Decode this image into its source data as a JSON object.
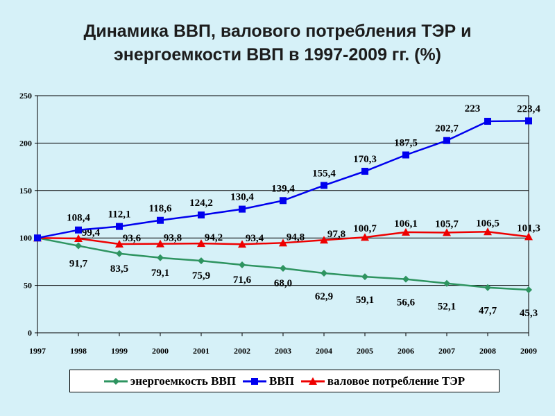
{
  "chart_data": {
    "type": "line",
    "title_lines": [
      "Динамика ВВП, валового потребления ТЭР и",
      "энергоемкости ВВП в 1997-2009 гг. (%)"
    ],
    "x": [
      "1997",
      "1998",
      "1999",
      "2000",
      "2001",
      "2002",
      "2003",
      "2004",
      "2005",
      "2006",
      "2007",
      "2008",
      "2009"
    ],
    "ylim": [
      0,
      250
    ],
    "yticks": [
      "0",
      "50",
      "100",
      "150",
      "200",
      "250"
    ],
    "grid": true,
    "legend_position": "bottom",
    "series": [
      {
        "name": "энергоемкость ВВП",
        "color": "#2e9460",
        "marker": "diamond",
        "values": [
          100,
          91.7,
          83.5,
          79.1,
          75.9,
          71.6,
          68.0,
          62.9,
          59.1,
          56.6,
          52.1,
          47.7,
          45.3
        ],
        "labels": [
          "",
          "91,7",
          "83,5",
          "79,1",
          "75,9",
          "71,6",
          "68,0",
          "62,9",
          "59,1",
          "56,6",
          "52,1",
          "47,7",
          "45,3"
        ]
      },
      {
        "name": "ВВП",
        "color": "#0000ee",
        "marker": "square",
        "values": [
          100,
          108.4,
          112.1,
          118.6,
          124.2,
          130.4,
          139.4,
          155.4,
          170.3,
          187.5,
          202.7,
          223,
          223.4
        ],
        "labels": [
          "",
          "108,4",
          "112,1",
          "118,6",
          "124,2",
          "130,4",
          "139,4",
          "155,4",
          "170,3",
          "187,5",
          "202,7",
          "223",
          "223,4"
        ]
      },
      {
        "name": "валовое потребление ТЭР",
        "color": "#ee0000",
        "marker": "triangle",
        "values": [
          100,
          99.4,
          93.6,
          93.8,
          94.2,
          93.4,
          94.8,
          97.8,
          100.7,
          106.1,
          105.7,
          106.5,
          101.3
        ],
        "labels": [
          "",
          "99,4",
          "93,6",
          "93,8",
          "94,2",
          "93,4",
          "94,8",
          "97,8",
          "100,7",
          "106,1",
          "105,7",
          "106,5",
          "101,3"
        ]
      }
    ]
  }
}
